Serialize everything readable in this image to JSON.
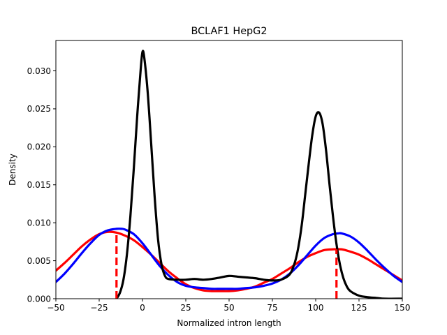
{
  "chart_data": {
    "type": "line",
    "title": "BCLAF1 HepG2",
    "xlabel": "Normalized intron length",
    "ylabel": "Density",
    "xlim": [
      -50,
      150
    ],
    "ylim": [
      0,
      0.034
    ],
    "x_ticks": [
      -50,
      -25,
      0,
      25,
      50,
      75,
      100,
      125,
      150
    ],
    "x_tick_labels": [
      "−50",
      "−25",
      "0",
      "25",
      "50",
      "75",
      "100",
      "125",
      "150"
    ],
    "y_ticks": [
      0,
      0.005,
      0.01,
      0.015,
      0.02,
      0.025,
      0.03
    ],
    "y_tick_labels": [
      "0.000",
      "0.005",
      "0.010",
      "0.015",
      "0.020",
      "0.025",
      "0.030"
    ],
    "grid": false,
    "legend": "none",
    "series": [
      {
        "color": "#000000",
        "x": [
          -15,
          -13,
          -11,
          -9,
          -7,
          -5,
          -3,
          -1,
          0,
          1,
          3,
          5,
          7,
          9,
          11,
          13,
          15,
          20,
          25,
          30,
          35,
          40,
          45,
          50,
          55,
          60,
          65,
          70,
          75,
          80,
          85,
          88,
          90,
          92,
          94,
          96,
          98,
          100,
          102,
          104,
          106,
          108,
          110,
          112,
          114,
          116,
          118,
          120,
          125,
          130,
          135,
          140,
          150
        ],
        "y": [
          0.0,
          0.0008,
          0.0025,
          0.0058,
          0.0108,
          0.0172,
          0.0242,
          0.0303,
          0.0325,
          0.0318,
          0.0272,
          0.0205,
          0.0135,
          0.0078,
          0.0045,
          0.003,
          0.0026,
          0.0025,
          0.0025,
          0.0026,
          0.0025,
          0.0026,
          0.0028,
          0.003,
          0.0029,
          0.0028,
          0.0027,
          0.0025,
          0.0024,
          0.0025,
          0.0032,
          0.0048,
          0.0068,
          0.0098,
          0.0138,
          0.0178,
          0.0215,
          0.024,
          0.0245,
          0.023,
          0.0195,
          0.015,
          0.0108,
          0.0072,
          0.0045,
          0.0027,
          0.0016,
          0.001,
          0.0004,
          0.0002,
          0.0001,
          0.0,
          0.0
        ]
      },
      {
        "color": "#ff0000",
        "x": [
          -50,
          -45,
          -40,
          -35,
          -30,
          -25,
          -20,
          -15,
          -10,
          -5,
          0,
          5,
          10,
          15,
          20,
          25,
          30,
          35,
          40,
          45,
          50,
          55,
          60,
          65,
          70,
          75,
          80,
          85,
          90,
          95,
          100,
          105,
          110,
          115,
          120,
          125,
          130,
          135,
          140,
          145,
          150
        ],
        "y": [
          0.0037,
          0.0047,
          0.0058,
          0.0069,
          0.0078,
          0.0085,
          0.0088,
          0.0087,
          0.0083,
          0.0077,
          0.0068,
          0.0058,
          0.0047,
          0.0036,
          0.0027,
          0.0019,
          0.0014,
          0.0011,
          0.001,
          0.001,
          0.001,
          0.0011,
          0.0013,
          0.0016,
          0.0021,
          0.0026,
          0.0033,
          0.004,
          0.0048,
          0.0055,
          0.006,
          0.0064,
          0.0065,
          0.0065,
          0.0062,
          0.0058,
          0.0052,
          0.0045,
          0.0038,
          0.0031,
          0.0024
        ]
      },
      {
        "color": "#0000ff",
        "x": [
          -50,
          -45,
          -40,
          -35,
          -30,
          -25,
          -20,
          -15,
          -12,
          -10,
          -5,
          0,
          5,
          10,
          15,
          20,
          25,
          30,
          35,
          40,
          45,
          50,
          55,
          60,
          65,
          70,
          75,
          80,
          85,
          90,
          95,
          100,
          105,
          110,
          113,
          115,
          120,
          125,
          130,
          135,
          140,
          145,
          150
        ],
        "y": [
          0.0022,
          0.0033,
          0.0046,
          0.006,
          0.0073,
          0.0084,
          0.009,
          0.0092,
          0.0092,
          0.0091,
          0.0085,
          0.0073,
          0.0058,
          0.0043,
          0.0031,
          0.0022,
          0.0017,
          0.0015,
          0.0014,
          0.0013,
          0.0013,
          0.0013,
          0.0013,
          0.0014,
          0.0015,
          0.0017,
          0.002,
          0.0025,
          0.0033,
          0.0044,
          0.0057,
          0.007,
          0.008,
          0.0085,
          0.0086,
          0.0086,
          0.0082,
          0.0074,
          0.0063,
          0.0051,
          0.004,
          0.003,
          0.0022
        ]
      }
    ],
    "vlines": [
      {
        "x": -15,
        "y": 0.0087,
        "color": "#ff0000",
        "style": "dashed"
      },
      {
        "x": 112,
        "y": 0.0065,
        "color": "#ff0000",
        "style": "dashed"
      }
    ]
  }
}
